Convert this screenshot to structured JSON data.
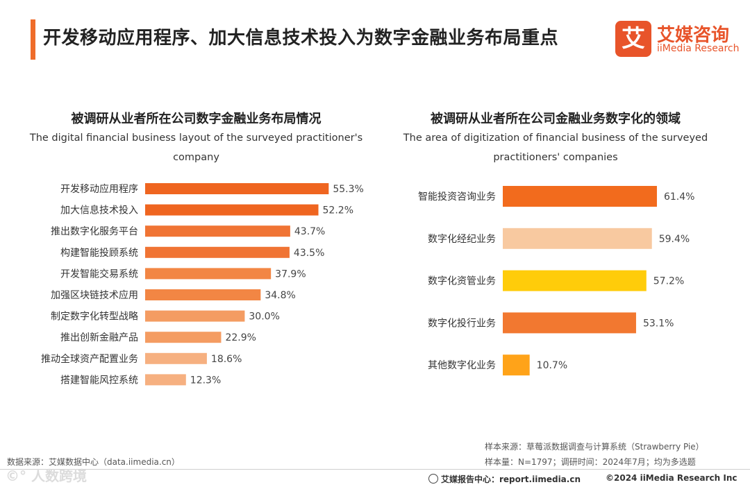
{
  "header": {
    "title": "开发移动应用程序、加大信息技术投入为数字金融业务布局重点",
    "logo_mark": "艾",
    "logo_cn": "艾媒咨询",
    "logo_en": "iiMedia Research"
  },
  "chart_data": [
    {
      "type": "bar",
      "orientation": "horizontal",
      "title": "被调研从业者所在公司数字金融业务布局情况",
      "subtitle_en": "The digital financial business layout of the surveyed practitioner's company",
      "unit": "%",
      "categories": [
        "开发移动应用程序",
        "加大信息技术投入",
        "推出数字化服务平台",
        "构建智能投顾系统",
        "开发智能交易系统",
        "加强区块链技术应用",
        "制定数字化转型战略",
        "推出创新金融产品",
        "推动全球资产配置业务",
        "搭建智能风控系统"
      ],
      "values": [
        55.3,
        52.2,
        43.7,
        43.5,
        37.9,
        34.8,
        30.0,
        22.9,
        18.6,
        12.3
      ],
      "labels": [
        "55.3%",
        "52.2%",
        "43.7%",
        "43.5%",
        "37.9%",
        "34.8%",
        "30.0%",
        "22.9%",
        "18.6%",
        "12.3%"
      ],
      "colors": [
        "#ef6520",
        "#ef6520",
        "#f07434",
        "#f07434",
        "#f28644",
        "#f28644",
        "#f49c62",
        "#f49c62",
        "#f6b080",
        "#f6b080"
      ]
    },
    {
      "type": "bar",
      "orientation": "horizontal",
      "title": "被调研从业者所在公司金融业务数字化的领域",
      "subtitle_en": "The area of digitization of financial business of the surveyed practitioners' companies",
      "unit": "%",
      "categories": [
        "智能投资咨询业务",
        "数字化经纪业务",
        "数字化资管业务",
        "数字化投行业务",
        "其他数字化业务"
      ],
      "values": [
        61.4,
        59.4,
        57.2,
        53.1,
        10.7
      ],
      "labels": [
        "61.4%",
        "59.4%",
        "57.2%",
        "53.1%",
        "10.7%"
      ],
      "colors": [
        "#f26b1d",
        "#f8c9a0",
        "#ffcc0a",
        "#f27830",
        "#ffa319"
      ]
    }
  ],
  "footer": {
    "sample_source": "样本来源：草莓派数据调查与计算系统（Strawberry Pie）",
    "sample_info": "样本量：N=1797；调研时间：2024年7月；均为多选题",
    "data_source": "数据来源：艾媒数据中心（data.iimedia.cn）",
    "report_center": "艾媒报告中心：report.iimedia.cn",
    "copyright": "©2024  iiMedia Research Inc",
    "watermark": "©° 人数跨境"
  }
}
